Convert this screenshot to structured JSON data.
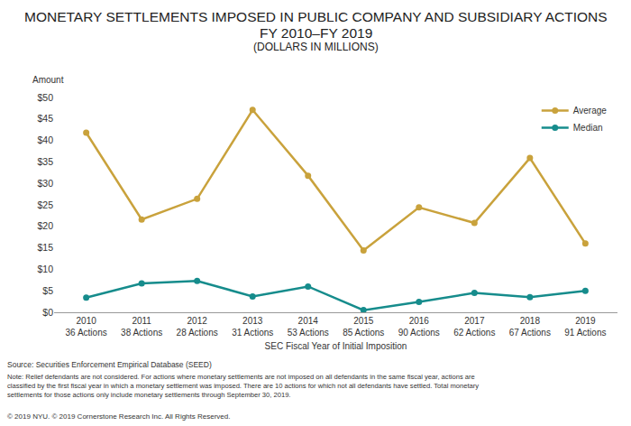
{
  "chart_data": {
    "type": "line",
    "title": "MONETARY SETTLEMENTS IMPOSED IN PUBLIC COMPANY AND SUBSIDIARY ACTIONS",
    "subtitle": [
      "FY 2010–FY 2019",
      "(DOLLARS IN MILLIONS)"
    ],
    "y_label": "Amount",
    "x_label": "SEC Fiscal Year of Initial Imposition",
    "categories": [
      "2010",
      "2011",
      "2012",
      "2013",
      "2014",
      "2015",
      "2016",
      "2017",
      "2018",
      "2019"
    ],
    "category_sublabels": [
      "36 Actions",
      "38 Actions",
      "28 Actions",
      "31 Actions",
      "53 Actions",
      "85 Actions",
      "90 Actions",
      "62 Actions",
      "67 Actions",
      "91 Actions"
    ],
    "series": [
      {
        "name": "Average",
        "color": "#c9a23c",
        "values": [
          41.8,
          21.6,
          26.4,
          47.1,
          31.8,
          14.4,
          24.4,
          20.8,
          35.9,
          16.0
        ]
      },
      {
        "name": "Median",
        "color": "#168c8c",
        "values": [
          3.4,
          6.7,
          7.3,
          3.7,
          6.0,
          0.5,
          2.4,
          4.5,
          3.5,
          5.0
        ]
      }
    ],
    "marker": "circle",
    "ylim": [
      0,
      50
    ],
    "yticks": [
      {
        "value": 0,
        "label": "$0"
      },
      {
        "value": 5,
        "label": "$5"
      },
      {
        "value": 10,
        "label": "$10"
      },
      {
        "value": 15,
        "label": "$15"
      },
      {
        "value": 20,
        "label": "$20"
      },
      {
        "value": 25,
        "label": "$25"
      },
      {
        "value": 30,
        "label": "$30"
      },
      {
        "value": 35,
        "label": "$35"
      },
      {
        "value": 40,
        "label": "$40"
      },
      {
        "value": 45,
        "label": "$45"
      },
      {
        "value": 50,
        "label": "$50"
      }
    ],
    "grid": false,
    "legend": "upper right",
    "source": "Source: Securities Enforcement Empirical Database (SEED)",
    "note": [
      "Note: Relief defendants are not considered. For actions where monetary settlements are not imposed on all defendants in the same fiscal year, actions are",
      "classified by the first fiscal year in which a monetary settlement was imposed. There are 10 actions for which not all defendants have settled. Total monetary",
      "settlements for those actions only include monetary settlements through September 30, 2019."
    ],
    "copyright": "© 2019 NYU. © 2019 Cornerstone Research Inc. All Rights Reserved."
  }
}
